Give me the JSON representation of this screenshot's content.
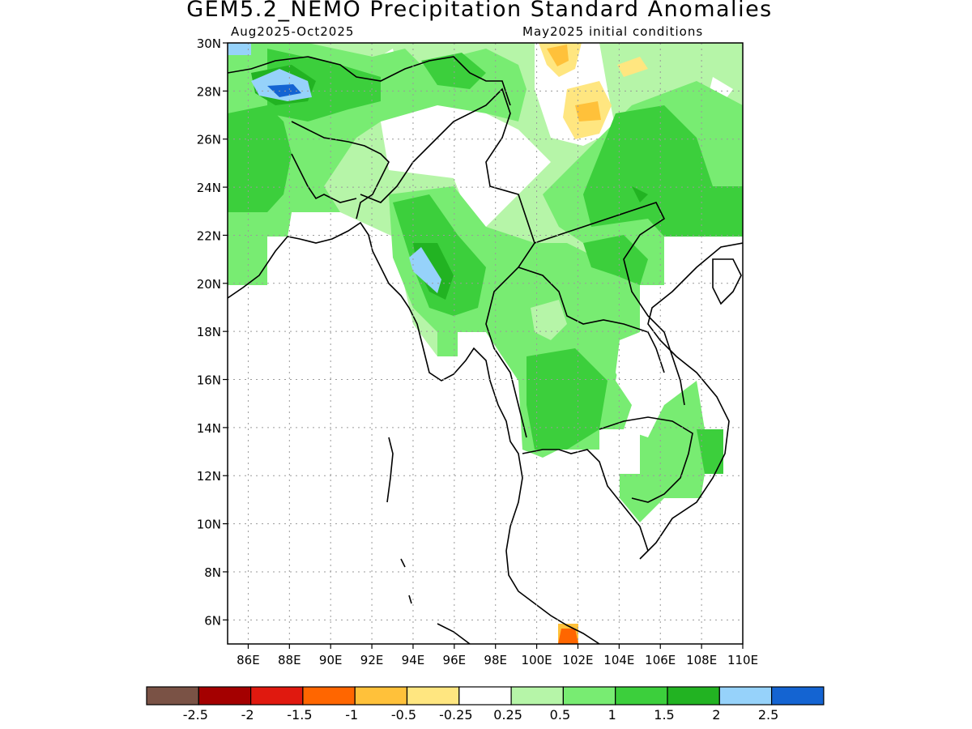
{
  "title": "GEM5.2_NEMO Precipitation Standard Anomalies",
  "period": "Aug2025-Oct2025",
  "init": "May2025 initial conditions",
  "lat_labels": [
    "30N",
    "28N",
    "26N",
    "24N",
    "22N",
    "20N",
    "18N",
    "16N",
    "14N",
    "12N",
    "10N",
    "8N",
    "6N"
  ],
  "lon_labels": [
    "86E",
    "88E",
    "90E",
    "92E",
    "94E",
    "96E",
    "98E",
    "100E",
    "102E",
    "104E",
    "106E",
    "108E",
    "110E"
  ],
  "colorbar": {
    "colors": [
      "#7a5245",
      "#a40000",
      "#e0190f",
      "#ff6600",
      "#ffc13a",
      "#ffe680",
      "#ffffff",
      "#b6f5a8",
      "#78ec72",
      "#3ccf3c",
      "#22b322",
      "#96d2fa",
      "#1464d2"
    ],
    "labels": [
      "-2.5",
      "-2",
      "-1.5",
      "-1",
      "-0.5",
      "-0.25",
      "0.25",
      "0.5",
      "1",
      "1.5",
      "2",
      "2.5"
    ]
  },
  "map_extent": {
    "lon": [
      85,
      110
    ],
    "lat": [
      5,
      30
    ]
  },
  "regions": [
    {
      "level": "0.25 to 0.5",
      "color": "#b6f5a8"
    },
    {
      "level": "0.5 to 1",
      "color": "#78ec72"
    },
    {
      "level": "1 to 1.5",
      "color": "#3ccf3c"
    },
    {
      "level": "1.5 to 2",
      "color": "#22b322"
    },
    {
      "level": "2 to 2.5",
      "color": "#96d2fa"
    },
    {
      "level": "> 2.5",
      "color": "#1464d2"
    },
    {
      "level": "-0.5 to -0.25",
      "color": "#ffe680"
    },
    {
      "level": "-1 to -0.5",
      "color": "#ffc13a"
    },
    {
      "level": "-1.5 to -1",
      "color": "#ff6600"
    }
  ]
}
